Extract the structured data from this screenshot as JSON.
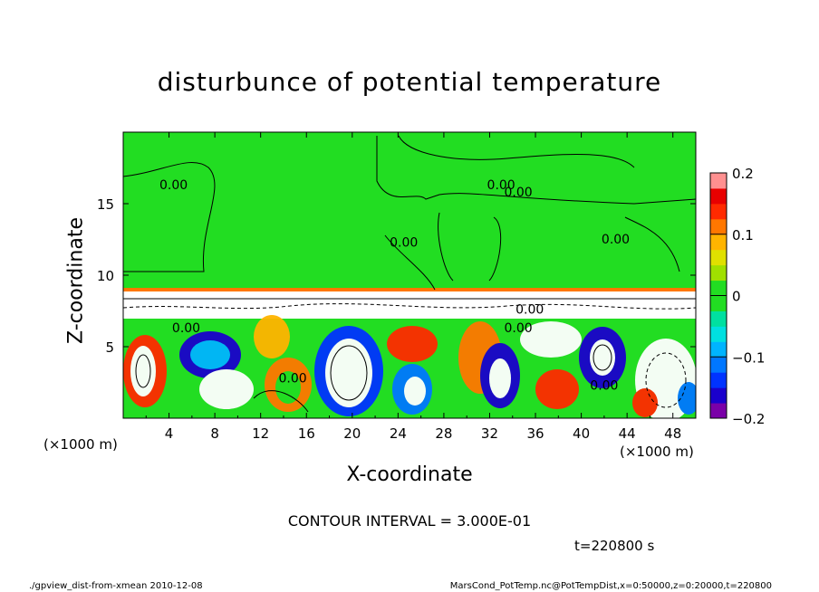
{
  "chart_data": {
    "type": "heatmap",
    "title": "disturbunce of potential temperature",
    "xlabel": "X-coordinate",
    "ylabel": "Z-coordinate",
    "x_unit_label": "(×1000 m)",
    "x_ticks": [
      4,
      8,
      12,
      16,
      20,
      24,
      28,
      32,
      36,
      40,
      44,
      48
    ],
    "y_ticks": [
      5,
      10,
      15
    ],
    "xlim": [
      0,
      50
    ],
    "ylim": [
      0,
      20
    ],
    "colorbar": {
      "range": [
        -0.2,
        0.2
      ],
      "ticks": [
        "0.2",
        "0.1",
        "0",
        "−0.1",
        "−0.2"
      ],
      "colors": [
        "#7a00a8",
        "#1a00cc",
        "#0033ff",
        "#0077ff",
        "#00b4ff",
        "#00e0e0",
        "#00e0a0",
        "#22dd22",
        "#22dd22",
        "#a0e000",
        "#e0e000",
        "#ffb400",
        "#ff7700",
        "#ff2a00",
        "#e80000",
        "#ff9090"
      ]
    },
    "contour_labels": [
      {
        "text": "0.00",
        "x": 4.4,
        "z": 16.0
      },
      {
        "text": "0.00",
        "x": 33.0,
        "z": 16.0
      },
      {
        "text": "0.00",
        "x": 34.5,
        "z": 15.5
      },
      {
        "text": "0.00",
        "x": 24.5,
        "z": 12.0
      },
      {
        "text": "0.00",
        "x": 43.0,
        "z": 12.2
      },
      {
        "text": "0.00",
        "x": 5.5,
        "z": 6.0
      },
      {
        "text": "0.00",
        "x": 14.8,
        "z": 2.5
      },
      {
        "text": "0.00",
        "x": 34.5,
        "z": 6.0
      },
      {
        "text": "0.00",
        "x": 35.5,
        "z": 7.3
      },
      {
        "text": "0.00",
        "x": 42.0,
        "z": 2.0
      }
    ],
    "contour_interval": "CONTOUR INTERVAL = 3.000E-01",
    "time": "t=220800 s"
  },
  "footer": {
    "left": "./gpview_dist-from-xmean  2010-12-08",
    "right": "MarsCond_PotTemp.nc@PotTempDist,x=0:50000,z=0:20000,t=220800"
  }
}
